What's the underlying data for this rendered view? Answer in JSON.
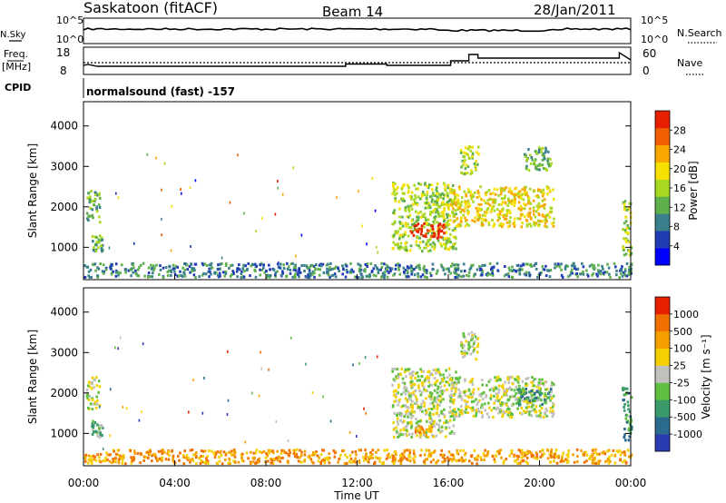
{
  "header": {
    "station": "Saskatoon (fitACF)",
    "beam": "Beam 14",
    "date": "28/Jan/2011"
  },
  "top_panels": {
    "nsky_label": "N.Sky",
    "nsearch_label": "N.Search",
    "freq_label": "Freq.",
    "freq_unit": "[MHz]",
    "nave_label": "Nave",
    "cpid_label": "CPID",
    "noise_ticks": [
      "10^5",
      "10^0"
    ],
    "freq_ticks": [
      "18",
      "8"
    ],
    "nave_ticks": [
      "60",
      "0"
    ],
    "cpid_text": "normalsound (fast) -157"
  },
  "chart_data": [
    {
      "type": "heatmap",
      "name": "power",
      "ylabel": "Slant Range [km]",
      "xlabel": "Time UT",
      "ylim": [
        200,
        4600
      ],
      "yticks": [
        1000,
        2000,
        3000,
        4000
      ],
      "xticks": [
        "00:00",
        "04:00",
        "08:00",
        "12:00",
        "16:00",
        "20:00",
        "00:00"
      ],
      "colorbar": {
        "label": "Power [dB]",
        "ticks": [
          "4",
          "8",
          "12",
          "16",
          "20",
          "24",
          "28"
        ],
        "colors": [
          "#0000ff",
          "#1f3cb4",
          "#3a7f8c",
          "#5fb04c",
          "#a8d820",
          "#f5e000",
          "#f8a800",
          "#f06000",
          "#e82000"
        ]
      },
      "regions": [
        {
          "t": [
            0.1,
            0.7
          ],
          "r": [
            1600,
            2400
          ],
          "level": 3
        },
        {
          "t": [
            0.3,
            0.8
          ],
          "r": [
            900,
            1300
          ],
          "level": 3
        },
        {
          "t": [
            13.5,
            16.3
          ],
          "r": [
            900,
            2600
          ],
          "level": 4
        },
        {
          "t": [
            14.3,
            15.8
          ],
          "r": [
            1200,
            1600
          ],
          "level": 8
        },
        {
          "t": [
            16.0,
            20.6
          ],
          "r": [
            1500,
            2500
          ],
          "level": 5
        },
        {
          "t": [
            16.5,
            17.3
          ],
          "r": [
            2800,
            3500
          ],
          "level": 4
        },
        {
          "t": [
            19.3,
            20.5
          ],
          "r": [
            2900,
            3500
          ],
          "level": 3
        },
        {
          "t": [
            23.6,
            24.0
          ],
          "r": [
            800,
            2200
          ],
          "level": 4
        },
        {
          "t": [
            0.0,
            24.0
          ],
          "r": [
            250,
            600
          ],
          "level": 2
        }
      ]
    },
    {
      "type": "heatmap",
      "name": "velocity",
      "ylabel": "Slant Range [km]",
      "xlabel": "Time UT",
      "ylim": [
        200,
        4600
      ],
      "yticks": [
        1000,
        2000,
        3000,
        4000
      ],
      "xticks": [
        "00:00",
        "04:00",
        "08:00",
        "12:00",
        "16:00",
        "20:00",
        "00:00"
      ],
      "colorbar": {
        "label": "Velocity [m s⁻¹]",
        "ticks": [
          "1000",
          "500",
          "100",
          "25",
          "-25",
          "-100",
          "-500",
          "-1000"
        ],
        "colors": [
          "#2a3ab0",
          "#2a6a8c",
          "#3a9a6a",
          "#60c040",
          "#c0c0bc",
          "#f5d000",
          "#f5a000",
          "#f07000",
          "#e82000"
        ]
      },
      "regions": [
        {
          "t": [
            0.1,
            0.7
          ],
          "r": [
            1600,
            2400
          ],
          "level": 4
        },
        {
          "t": [
            0.3,
            0.8
          ],
          "r": [
            900,
            1300
          ],
          "level": 3
        },
        {
          "t": [
            13.5,
            16.3
          ],
          "r": [
            900,
            2600
          ],
          "level": 4
        },
        {
          "t": [
            14.5,
            15.3
          ],
          "r": [
            900,
            1200
          ],
          "level": 6
        },
        {
          "t": [
            16.0,
            20.6
          ],
          "r": [
            1400,
            2400
          ],
          "level": 4
        },
        {
          "t": [
            19.0,
            20.5
          ],
          "r": [
            1700,
            2100
          ],
          "level": 2
        },
        {
          "t": [
            16.5,
            17.3
          ],
          "r": [
            2800,
            3500
          ],
          "level": 4
        },
        {
          "t": [
            23.6,
            24.0
          ],
          "r": [
            800,
            2200
          ],
          "level": 2
        },
        {
          "t": [
            0.0,
            24.0
          ],
          "r": [
            250,
            600
          ],
          "level": 6
        }
      ]
    }
  ]
}
